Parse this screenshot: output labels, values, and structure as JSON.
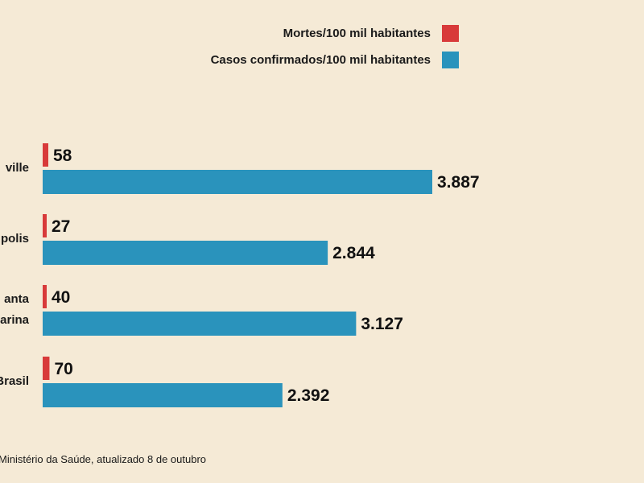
{
  "chart_data": {
    "type": "bar",
    "orientation": "horizontal",
    "categories": [
      "Joinville",
      "Florianópolis",
      "Santa Catarina",
      "Brasil"
    ],
    "category_labels_visible": [
      [
        "ville"
      ],
      [
        "polis"
      ],
      [
        "anta",
        "arina"
      ],
      [
        "Brasil"
      ]
    ],
    "series": [
      {
        "name": "Mortes/100 mil habitantes",
        "color": "#d83a3a",
        "values": [
          58,
          27,
          40,
          70
        ],
        "value_labels": [
          "58",
          "27",
          "40",
          "70"
        ]
      },
      {
        "name": "Casos confirmados/100 mil habitantes",
        "color": "#2a93bc",
        "values": [
          3887,
          2844,
          3127,
          2392
        ],
        "value_labels": [
          "3.887",
          "2.844",
          "3.127",
          "2.392"
        ]
      }
    ],
    "legend_position": "top-right",
    "grid": false,
    "xlim": [
      0,
      4000
    ]
  },
  "source": "Ministério da Saúde, atualizado 8 de outubro"
}
